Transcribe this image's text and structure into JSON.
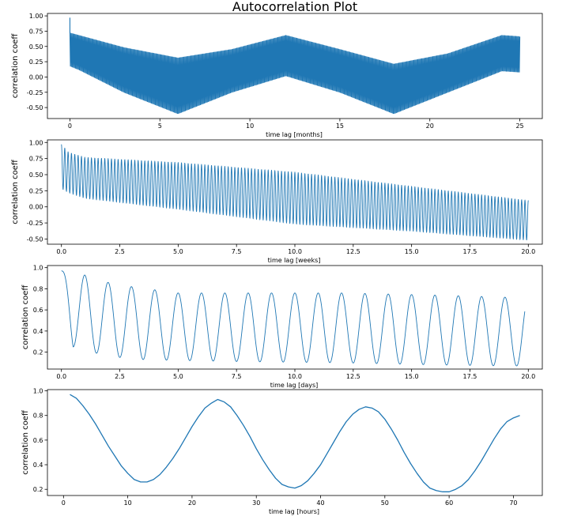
{
  "figure": {
    "title": "Autocorrelation Plot"
  },
  "chart_data": [
    {
      "type": "line",
      "style": "dense-oscillation-band",
      "xlabel": "time lag [months]",
      "ylabel": "correlation coeff",
      "xlim": [
        -1.25,
        26.25
      ],
      "ylim": [
        -0.68,
        1.04
      ],
      "xticks": [
        0,
        5,
        10,
        15,
        20,
        25
      ],
      "xtick_labels": [
        "0",
        "5",
        "10",
        "15",
        "20",
        "25"
      ],
      "yticks": [
        -0.5,
        -0.25,
        0.0,
        0.25,
        0.5,
        0.75,
        1.0
      ],
      "ytick_labels": [
        "-0.50",
        "-0.25",
        "0.00",
        "0.25",
        "0.50",
        "0.75",
        "1.00"
      ],
      "x_range": [
        0,
        25
      ],
      "upper_envelope": {
        "x": [
          0,
          0.5,
          3,
          6,
          9,
          12,
          15,
          18,
          21,
          24,
          25
        ],
        "y": [
          0.72,
          0.68,
          0.48,
          0.31,
          0.45,
          0.68,
          0.45,
          0.21,
          0.38,
          0.68,
          0.66
        ]
      },
      "lower_envelope": {
        "x": [
          0,
          0.5,
          3,
          6,
          9,
          12,
          15,
          18,
          21,
          24,
          25
        ],
        "y": [
          0.18,
          0.12,
          -0.25,
          -0.6,
          -0.25,
          0.02,
          -0.25,
          -0.6,
          -0.25,
          0.1,
          0.08
        ]
      },
      "initial_peak": {
        "x": 0,
        "y": 0.97
      },
      "color": "#1f77b4"
    },
    {
      "type": "line",
      "style": "oscillation",
      "xlabel": "time lag [weeks]",
      "ylabel": "correlation coeff",
      "xlim": [
        -0.6,
        20.6
      ],
      "ylim": [
        -0.58,
        1.04
      ],
      "xticks": [
        0,
        2.5,
        5,
        7.5,
        10,
        12.5,
        15,
        17.5,
        20
      ],
      "xtick_labels": [
        "0.0",
        "2.5",
        "5.0",
        "7.5",
        "10.0",
        "12.5",
        "15.0",
        "17.5",
        "20.0"
      ],
      "yticks": [
        -0.5,
        -0.25,
        0.0,
        0.25,
        0.5,
        0.75,
        1.0
      ],
      "ytick_labels": [
        "-0.50",
        "-0.25",
        "0.00",
        "0.25",
        "0.50",
        "0.75",
        "1.00"
      ],
      "x_range": [
        0,
        20
      ],
      "cycles_per_x": 7,
      "upper_envelope": {
        "x": [
          0,
          0.3,
          1,
          5,
          10,
          15,
          20
        ],
        "y": [
          0.97,
          0.85,
          0.77,
          0.69,
          0.54,
          0.32,
          0.1
        ]
      },
      "lower_envelope": {
        "x": [
          0,
          0.3,
          1,
          5,
          10,
          15,
          20
        ],
        "y": [
          0.28,
          0.22,
          0.13,
          -0.04,
          -0.27,
          -0.38,
          -0.52
        ]
      },
      "color": "#1f77b4"
    },
    {
      "type": "line",
      "style": "oscillation",
      "xlabel": "time lag [days]",
      "ylabel": "correlation coeff",
      "xlim": [
        -0.6,
        20.6
      ],
      "ylim": [
        0.04,
        1.02
      ],
      "xticks": [
        0,
        2.5,
        5,
        7.5,
        10,
        12.5,
        15,
        17.5,
        20
      ],
      "xtick_labels": [
        "0.0",
        "2.5",
        "5.0",
        "7.5",
        "10.0",
        "12.5",
        "15.0",
        "17.5",
        "20.0"
      ],
      "yticks": [
        0.2,
        0.4,
        0.6,
        0.8,
        1.0
      ],
      "ytick_labels": [
        "0.2",
        "0.4",
        "0.6",
        "0.8",
        "1.0"
      ],
      "x_range": [
        0,
        19.85
      ],
      "cycles_per_x": 1,
      "upper_envelope": {
        "x": [
          0,
          1,
          2,
          3,
          4,
          5,
          8,
          12,
          16,
          19,
          20
        ],
        "y": [
          0.97,
          0.93,
          0.86,
          0.82,
          0.79,
          0.76,
          0.76,
          0.76,
          0.74,
          0.72,
          0.72
        ]
      },
      "lower_envelope": {
        "x": [
          0,
          0.5,
          1.5,
          2.5,
          3.5,
          5.5,
          8,
          12,
          16,
          19,
          20
        ],
        "y": [
          0.97,
          0.25,
          0.19,
          0.15,
          0.13,
          0.12,
          0.11,
          0.1,
          0.08,
          0.07,
          0.07
        ]
      },
      "color": "#1f77b4"
    },
    {
      "type": "line",
      "style": "smooth",
      "xlabel": "time lag [hours]",
      "ylabel": "correlation coeff",
      "xlim": [
        -2.5,
        74.5
      ],
      "ylim": [
        0.15,
        1.01
      ],
      "xticks": [
        0,
        10,
        20,
        30,
        40,
        50,
        60,
        70
      ],
      "xtick_labels": [
        "0",
        "10",
        "20",
        "30",
        "40",
        "50",
        "60",
        "70"
      ],
      "yticks": [
        0.2,
        0.4,
        0.6,
        0.8,
        1.0
      ],
      "ytick_labels": [
        "0.2",
        "0.4",
        "0.6",
        "0.8",
        "1.0"
      ],
      "x": [
        1,
        2,
        3,
        4,
        5,
        6,
        7,
        8,
        9,
        10,
        11,
        12,
        13,
        14,
        15,
        16,
        17,
        18,
        19,
        20,
        21,
        22,
        23,
        24,
        25,
        26,
        27,
        28,
        29,
        30,
        31,
        32,
        33,
        34,
        35,
        36,
        37,
        38,
        39,
        40,
        41,
        42,
        43,
        44,
        45,
        46,
        47,
        48,
        49,
        50,
        51,
        52,
        53,
        54,
        55,
        56,
        57,
        58,
        59,
        60,
        61,
        62,
        63,
        64,
        65,
        66,
        67,
        68,
        69,
        70,
        71
      ],
      "y": [
        0.97,
        0.94,
        0.88,
        0.81,
        0.73,
        0.64,
        0.55,
        0.47,
        0.39,
        0.33,
        0.28,
        0.26,
        0.26,
        0.28,
        0.32,
        0.38,
        0.45,
        0.53,
        0.62,
        0.71,
        0.79,
        0.86,
        0.9,
        0.93,
        0.91,
        0.87,
        0.8,
        0.72,
        0.63,
        0.53,
        0.44,
        0.36,
        0.29,
        0.24,
        0.22,
        0.21,
        0.23,
        0.27,
        0.33,
        0.4,
        0.49,
        0.58,
        0.67,
        0.75,
        0.81,
        0.85,
        0.87,
        0.86,
        0.83,
        0.77,
        0.69,
        0.6,
        0.5,
        0.41,
        0.33,
        0.26,
        0.21,
        0.19,
        0.18,
        0.18,
        0.2,
        0.23,
        0.28,
        0.35,
        0.43,
        0.52,
        0.61,
        0.69,
        0.75,
        0.78,
        0.8
      ],
      "color": "#1f77b4"
    }
  ]
}
